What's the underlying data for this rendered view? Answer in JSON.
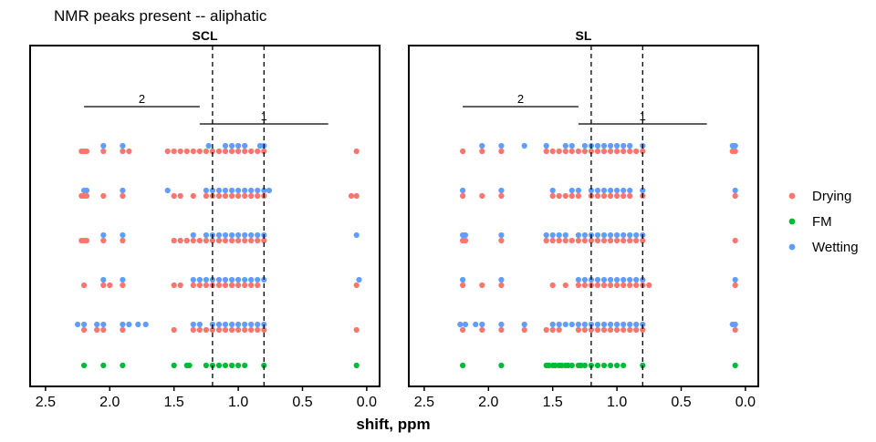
{
  "chart_data": {
    "type": "scatter",
    "title": "NMR peaks present -- aliphatic",
    "xlabel": "shift, ppm",
    "ylabel": "",
    "x_reversed": true,
    "xlim": [
      2.62,
      -0.1
    ],
    "x_ticks": [
      {
        "value": 2.5,
        "label": "2.5"
      },
      {
        "value": 2.0,
        "label": "2.0"
      },
      {
        "value": 1.5,
        "label": "1.5"
      },
      {
        "value": 1.0,
        "label": "1.0"
      },
      {
        "value": 0.5,
        "label": "0.5"
      },
      {
        "value": 0.0,
        "label": "0.0"
      }
    ],
    "reference_lines": [
      1.2,
      0.8
    ],
    "legend": {
      "position": "right",
      "entries": [
        {
          "name": "Drying",
          "color": "#F8766D"
        },
        {
          "name": "FM",
          "color": "#00BA38"
        },
        {
          "name": "Wetting",
          "color": "#619CFF"
        }
      ]
    },
    "panels": [
      {
        "strip": "SCL",
        "brackets": [
          {
            "label": "2",
            "x_from": 2.2,
            "x_to": 1.3,
            "level": 2
          },
          {
            "label": "1",
            "x_from": 1.3,
            "x_to": 0.3,
            "level": 1
          }
        ],
        "rows": [
          {
            "Wetting": [
              2.05,
              1.9,
              1.23,
              1.1,
              1.05,
              1.0,
              0.95,
              0.83,
              0.8
            ],
            "Drying": [
              2.22,
              2.2,
              2.18,
              2.05,
              1.9,
              1.85,
              1.55,
              1.5,
              1.45,
              1.4,
              1.35,
              1.3,
              1.25,
              1.2,
              1.15,
              1.1,
              1.05,
              1.0,
              0.95,
              0.9,
              0.85,
              0.8,
              0.08
            ]
          },
          {
            "Wetting": [
              2.2,
              2.18,
              1.9,
              1.55,
              1.25,
              1.2,
              1.15,
              1.1,
              1.05,
              1.0,
              0.95,
              0.9,
              0.85,
              0.8,
              0.76
            ],
            "Drying": [
              2.22,
              2.2,
              2.18,
              2.05,
              1.9,
              1.5,
              1.45,
              1.35,
              1.25,
              1.2,
              1.15,
              1.1,
              1.05,
              1.0,
              0.95,
              0.9,
              0.85,
              0.8,
              0.12,
              0.08
            ]
          },
          {
            "Wetting": [
              2.05,
              1.9,
              1.35,
              1.25,
              1.2,
              1.15,
              1.1,
              1.05,
              1.0,
              0.95,
              0.9,
              0.85,
              0.8,
              0.08
            ],
            "Drying": [
              2.22,
              2.2,
              2.18,
              2.05,
              1.9,
              1.5,
              1.45,
              1.4,
              1.35,
              1.3,
              1.25,
              1.2,
              1.15,
              1.1,
              1.05,
              1.0,
              0.95,
              0.9,
              0.85,
              0.8
            ]
          },
          {
            "Wetting": [
              2.05,
              1.9,
              1.35,
              1.3,
              1.25,
              1.2,
              1.15,
              1.1,
              1.05,
              1.0,
              0.95,
              0.9,
              0.85,
              0.8,
              0.06
            ],
            "Drying": [
              2.2,
              2.05,
              2.0,
              1.9,
              1.5,
              1.45,
              1.35,
              1.3,
              1.25,
              1.2,
              1.15,
              1.1,
              1.05,
              1.0,
              0.95,
              0.9,
              0.85,
              0.08
            ]
          },
          {
            "Wetting": [
              2.25,
              2.2,
              2.1,
              2.05,
              1.9,
              1.85,
              1.78,
              1.72,
              1.35,
              1.3,
              1.2,
              1.15,
              1.1,
              1.05,
              1.0,
              0.95,
              0.9,
              0.85,
              0.8
            ],
            "Drying": [
              2.2,
              2.1,
              2.05,
              1.9,
              1.5,
              1.35,
              1.3,
              1.25,
              1.2,
              1.15,
              1.1,
              1.05,
              1.0,
              0.95,
              0.9,
              0.85,
              0.8,
              0.08
            ]
          },
          {
            "FM": [
              2.2,
              2.05,
              1.9,
              1.5,
              1.4,
              1.38,
              1.25,
              1.2,
              1.15,
              1.1,
              1.05,
              1.0,
              0.95,
              0.8,
              0.08
            ]
          }
        ]
      },
      {
        "strip": "SL",
        "brackets": [
          {
            "label": "2",
            "x_from": 2.2,
            "x_to": 1.3,
            "level": 2
          },
          {
            "label": "1",
            "x_from": 1.3,
            "x_to": 0.3,
            "level": 1
          }
        ],
        "rows": [
          {
            "Wetting": [
              2.05,
              1.9,
              1.72,
              1.55,
              1.4,
              1.35,
              1.25,
              1.2,
              1.15,
              1.1,
              1.05,
              1.0,
              0.95,
              0.9,
              0.8,
              0.1,
              0.08
            ],
            "Drying": [
              2.2,
              2.05,
              1.9,
              1.55,
              1.5,
              1.45,
              1.4,
              1.35,
              1.3,
              1.25,
              1.2,
              1.15,
              1.1,
              1.05,
              1.0,
              0.95,
              0.9,
              0.85,
              0.8,
              0.1,
              0.08
            ]
          },
          {
            "Wetting": [
              2.2,
              1.9,
              1.5,
              1.35,
              1.3,
              1.2,
              1.15,
              1.1,
              1.05,
              1.0,
              0.95,
              0.9,
              0.8,
              0.08
            ],
            "Drying": [
              2.2,
              2.05,
              1.9,
              1.5,
              1.45,
              1.4,
              1.35,
              1.3,
              1.2,
              1.15,
              1.1,
              1.05,
              1.0,
              0.95,
              0.9,
              0.8,
              0.08
            ]
          },
          {
            "Wetting": [
              2.2,
              2.18,
              1.9,
              1.55,
              1.5,
              1.45,
              1.4,
              1.3,
              1.25,
              1.2,
              1.15,
              1.1,
              1.05,
              1.0,
              0.95,
              0.9,
              0.85,
              0.8
            ],
            "Drying": [
              2.2,
              2.18,
              1.9,
              1.55,
              1.5,
              1.45,
              1.4,
              1.35,
              1.3,
              1.25,
              1.2,
              1.15,
              1.1,
              1.05,
              1.0,
              0.95,
              0.9,
              0.85,
              0.8,
              0.08
            ]
          },
          {
            "Wetting": [
              2.2,
              1.9,
              1.3,
              1.25,
              1.2,
              1.15,
              1.1,
              1.05,
              1.0,
              0.95,
              0.9,
              0.85,
              0.8,
              0.08
            ],
            "Drying": [
              2.2,
              2.05,
              1.9,
              1.5,
              1.4,
              1.3,
              1.25,
              1.2,
              1.15,
              1.1,
              1.05,
              1.0,
              0.95,
              0.9,
              0.85,
              0.8,
              0.75,
              0.08
            ]
          },
          {
            "Wetting": [
              2.22,
              2.18,
              2.1,
              2.05,
              1.9,
              1.72,
              1.5,
              1.45,
              1.4,
              1.35,
              1.3,
              1.25,
              1.2,
              1.15,
              1.1,
              1.05,
              1.0,
              0.95,
              0.9,
              0.85,
              0.8,
              0.1,
              0.08
            ],
            "Drying": [
              2.2,
              2.05,
              1.9,
              1.72,
              1.55,
              1.5,
              1.45,
              1.3,
              1.25,
              1.2,
              1.15,
              1.1,
              1.05,
              1.0,
              0.95,
              0.9,
              0.85,
              0.8,
              0.08
            ]
          },
          {
            "FM": [
              2.2,
              1.9,
              1.55,
              1.53,
              1.5,
              1.48,
              1.45,
              1.43,
              1.4,
              1.38,
              1.35,
              1.3,
              1.28,
              1.25,
              1.2,
              1.15,
              1.1,
              1.05,
              1.0,
              0.95,
              0.8,
              0.08
            ]
          }
        ]
      }
    ]
  }
}
